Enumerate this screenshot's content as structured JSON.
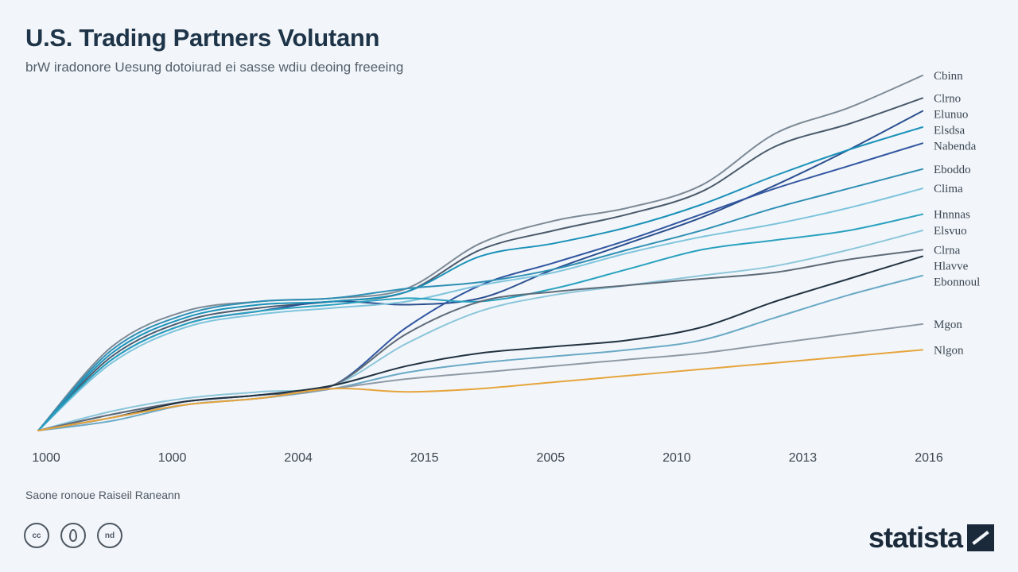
{
  "title": "U.S. Trading Partners Volutann",
  "subtitle": "brW iradonore Uesung dotoiurad ei sasse wdiu deoing freeeing",
  "source": "Saone ronoue Raiseil Raneann",
  "brand": "statista",
  "cc_icons": [
    {
      "name": "cc-icon",
      "text": "cc"
    },
    {
      "name": "attribution-icon",
      "text": ""
    },
    {
      "name": "nd-icon",
      "text": "nd"
    }
  ],
  "chart_data": {
    "type": "line",
    "title": "U.S. Trading Partners Volutann",
    "xlabel": "",
    "ylabel": "",
    "x_ticks": [
      "1000",
      "1000",
      "2004",
      "2015",
      "2005",
      "2010",
      "2013",
      "2016"
    ],
    "x": [
      0,
      1,
      2,
      3,
      4,
      5,
      6,
      7,
      8,
      9,
      10,
      11,
      12
    ],
    "ylim": [
      0,
      100
    ],
    "grid": false,
    "legend": "end-labels-right",
    "series": [
      {
        "name": "Cbinn",
        "color": "#7d8a96",
        "values": [
          0,
          26,
          37,
          40,
          41,
          44,
          58,
          65,
          69,
          76,
          92,
          100,
          110
        ]
      },
      {
        "name": "Clrno",
        "color": "#4b5a6b",
        "values": [
          0,
          23,
          34,
          38,
          40,
          43,
          56,
          62,
          67,
          74,
          88,
          95,
          103
        ]
      },
      {
        "name": "Elunuo",
        "color": "#2b4f8f",
        "values": [
          0,
          22,
          33,
          37,
          40,
          39,
          41,
          50,
          58,
          66,
          76,
          87,
          99
        ]
      },
      {
        "name": "Elsdsa",
        "color": "#1c91b8",
        "values": [
          0,
          24,
          35,
          39,
          40,
          43,
          54,
          58,
          63,
          70,
          79,
          87,
          94
        ]
      },
      {
        "name": "Nabenda",
        "color": "#3256a0",
        "values": [
          0,
          5,
          9,
          11,
          14,
          32,
          45,
          52,
          59,
          67,
          75,
          82,
          89
        ]
      },
      {
        "name": "Eboddo",
        "color": "#2f8fb4",
        "values": [
          0,
          25,
          36,
          40,
          41,
          44,
          46,
          50,
          56,
          62,
          69,
          75,
          81
        ]
      },
      {
        "name": "Clima",
        "color": "#7ec4dc",
        "values": [
          0,
          21,
          32,
          36,
          38,
          40,
          45,
          49,
          55,
          60,
          64,
          69,
          75
        ]
      },
      {
        "name": "Hnnnas",
        "color": "#2aa1c0",
        "values": [
          0,
          22,
          33,
          37,
          39,
          41,
          40,
          44,
          50,
          56,
          59,
          62,
          67
        ]
      },
      {
        "name": "Elsvuo",
        "color": "#8cc6da",
        "values": [
          0,
          6,
          10,
          12,
          14,
          27,
          37,
          42,
          45,
          48,
          51,
          56,
          62
        ]
      },
      {
        "name": "Clrna",
        "color": "#5f6b78",
        "values": [
          0,
          5,
          9,
          11,
          14,
          30,
          40,
          43,
          45,
          47,
          49,
          53,
          56
        ]
      },
      {
        "name": "Hlavve",
        "color": "#223240",
        "values": [
          0,
          4,
          9,
          11,
          14,
          20,
          24,
          26,
          28,
          32,
          40,
          47,
          54
        ]
      },
      {
        "name": "Ebonnoul",
        "color": "#6aa9c6",
        "values": [
          0,
          3,
          8,
          10,
          13,
          18,
          21,
          23,
          25,
          28,
          35,
          42,
          48
        ]
      },
      {
        "name": "Mgon",
        "color": "#8f9aa6",
        "values": [
          0,
          4,
          8,
          10,
          13,
          16,
          18,
          20,
          22,
          24,
          27,
          30,
          33
        ]
      },
      {
        "name": "Nlgon",
        "color": "#e6a43c",
        "values": [
          0,
          4,
          8,
          10,
          13,
          12,
          13,
          15,
          17,
          19,
          21,
          23,
          25
        ]
      }
    ]
  }
}
